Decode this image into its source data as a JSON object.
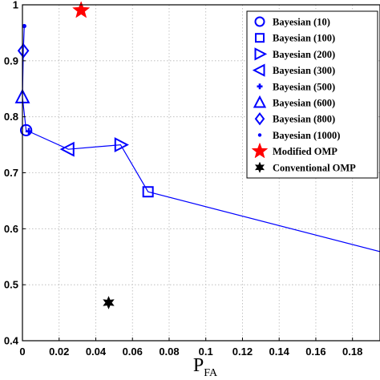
{
  "chart_data": {
    "type": "line",
    "title": "",
    "xlabel": "P",
    "xlabel_sub": "FA",
    "ylabel": "",
    "xlim": [
      0,
      0.195
    ],
    "ylim": [
      0.4,
      1.0
    ],
    "xticks": [
      0,
      0.02,
      0.04,
      0.06,
      0.08,
      0.1,
      0.12,
      0.14,
      0.16,
      0.18
    ],
    "xtick_labels": [
      "0",
      "0.02",
      "0.04",
      "0.06",
      "0.08",
      "0.1",
      "0.12",
      "0.14",
      "0.16",
      "0.18"
    ],
    "yticks": [
      0.4,
      0.5,
      0.6,
      0.7,
      0.8,
      0.9,
      1.0
    ],
    "ytick_labels": [
      "0.4",
      "0.5",
      "0.6",
      "0.7",
      "0.8",
      "0.9",
      "1"
    ],
    "grid": true,
    "legend_position": "top-right",
    "line_color": "#0000ff",
    "bayesian_curve": {
      "x": [
        0.001,
        0.0005,
        0.0,
        0.002,
        0.025,
        0.0535,
        0.0685,
        0.2
      ],
      "y": [
        0.962,
        0.918,
        0.835,
        0.776,
        0.742,
        0.75,
        0.666,
        0.555
      ]
    },
    "series": [
      {
        "name": "Bayesian (10)",
        "marker": "circle",
        "color": "#0000ff",
        "x": 0.002,
        "y": 0.776
      },
      {
        "name": "Bayesian (100)",
        "marker": "square",
        "color": "#0000ff",
        "x": 0.0685,
        "y": 0.666
      },
      {
        "name": "Bayesian (200)",
        "marker": "triangle-right",
        "color": "#0000ff",
        "x": 0.0535,
        "y": 0.75
      },
      {
        "name": "Bayesian (300)",
        "marker": "triangle-left",
        "color": "#0000ff",
        "x": 0.025,
        "y": 0.742
      },
      {
        "name": "Bayesian (500)",
        "marker": "plus",
        "color": "#0000ff",
        "x": 0.0035,
        "y": 0.774
      },
      {
        "name": "Bayesian (600)",
        "marker": "triangle-up",
        "color": "#0000ff",
        "x": 0.0,
        "y": 0.835
      },
      {
        "name": "Bayesian (800)",
        "marker": "diamond",
        "color": "#0000ff",
        "x": 0.0005,
        "y": 0.918
      },
      {
        "name": "Bayesian (1000)",
        "marker": "dot",
        "color": "#0000ff",
        "x": 0.001,
        "y": 0.962
      },
      {
        "name": "Modified OMP",
        "marker": "star",
        "color": "#ff0000",
        "x": 0.032,
        "y": 0.99
      },
      {
        "name": "Conventional OMP",
        "marker": "star6",
        "color": "#000000",
        "x": 0.047,
        "y": 0.468
      }
    ]
  }
}
